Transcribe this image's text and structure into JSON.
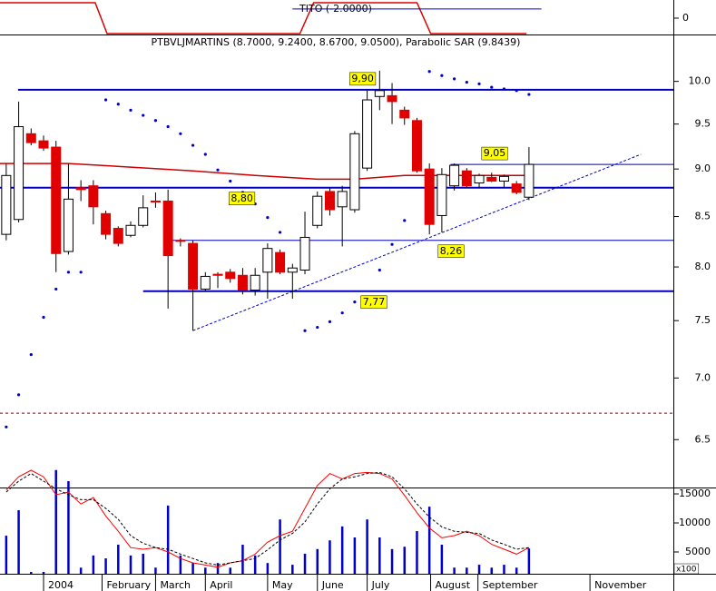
{
  "chart_data": {
    "type": "candlestick",
    "title": "PTBVLJMARTINS (8.7000, 9.2400, 8.6700, 9.0500), Parabolic SAR (9.8439)",
    "categories": [
      null,
      null,
      null,
      null,
      null,
      null,
      null,
      null,
      null,
      null,
      null,
      null,
      null,
      null,
      null,
      null,
      null,
      null,
      null,
      null,
      null,
      null,
      null,
      null,
      null,
      null,
      null,
      null,
      null,
      null,
      null,
      null,
      null,
      null,
      null,
      null,
      null,
      null,
      null,
      null,
      null,
      null,
      null
    ],
    "xlim": [
      -0.5,
      53.6
    ],
    "xticks": [
      {
        "value": 3,
        "label": "2004"
      },
      {
        "value": 7.7,
        "label": "February"
      },
      {
        "value": 12,
        "label": "March"
      },
      {
        "value": 16,
        "label": "April"
      },
      {
        "value": 21,
        "label": "May"
      },
      {
        "value": 25,
        "label": "June"
      },
      {
        "value": 29,
        "label": "July"
      },
      {
        "value": 34.1,
        "label": "August"
      },
      {
        "value": 37.9,
        "label": "September"
      },
      {
        "value": 46.9,
        "label": "November"
      }
    ],
    "ylim": [
      6.32,
      10.58
    ],
    "log_scale": true,
    "yticks": [
      {
        "value": 10,
        "label": "10.0"
      },
      9.5,
      {
        "value": 9,
        "label": "9.0"
      },
      8.5,
      {
        "value": 8,
        "label": "8.0"
      },
      7.5,
      {
        "value": 7,
        "label": "7.0"
      },
      6.5
    ],
    "up_color": "#ffffff",
    "down_color": "#e00000",
    "open": [
      8.32,
      8.47,
      9.39,
      9.31,
      9.24,
      8.15,
      8.8,
      8.82,
      8.53,
      8.38,
      8.31,
      8.41,
      8.66,
      8.66,
      8.26,
      8.23,
      7.79,
      7.93,
      7.95,
      7.92,
      7.78,
      7.95,
      8.14,
      7.95,
      7.97,
      8.41,
      8.76,
      8.6,
      8.57,
      9.01,
      9.82,
      9.83,
      9.66,
      9.54,
      9.0,
      8.51,
      8.82,
      8.98,
      8.85,
      8.91,
      8.87,
      8.84,
      8.7
    ],
    "high": [
      9.06,
      9.76,
      9.45,
      9.37,
      9.31,
      9.06,
      8.88,
      8.88,
      8.56,
      8.4,
      8.45,
      8.72,
      8.75,
      8.78,
      8.28,
      8.26,
      7.95,
      7.95,
      7.98,
      7.99,
      7.99,
      8.23,
      8.17,
      8.03,
      8.55,
      8.76,
      8.8,
      8.82,
      9.42,
      9.89,
      10.13,
      9.98,
      9.7,
      9.57,
      9.06,
      9.01,
      9.06,
      9.01,
      8.95,
      8.96,
      8.94,
      8.87,
      9.24
    ],
    "low": [
      8.26,
      8.44,
      9.26,
      9.2,
      7.95,
      8.12,
      8.66,
      8.42,
      8.27,
      8.2,
      8.29,
      8.39,
      8.59,
      7.61,
      8.2,
      7.41,
      7.77,
      7.8,
      7.85,
      7.74,
      7.73,
      7.7,
      7.93,
      7.7,
      7.93,
      8.38,
      8.51,
      8.2,
      8.54,
      8.98,
      9.66,
      9.5,
      9.49,
      8.96,
      8.32,
      8.34,
      8.77,
      8.8,
      8.8,
      8.86,
      8.8,
      8.73,
      8.67
    ],
    "close": [
      8.93,
      9.47,
      9.29,
      9.23,
      8.13,
      8.68,
      8.78,
      8.6,
      8.32,
      8.23,
      8.41,
      8.59,
      8.65,
      8.11,
      8.25,
      7.79,
      7.91,
      7.92,
      7.89,
      7.78,
      7.92,
      8.18,
      7.95,
      7.99,
      8.29,
      8.71,
      8.57,
      8.76,
      9.39,
      9.78,
      9.89,
      9.76,
      9.57,
      8.98,
      8.42,
      8.94,
      9.04,
      8.82,
      8.93,
      8.87,
      8.92,
      8.75,
      9.05
    ],
    "sar": {
      "color": "#0000cc",
      "values": [
        6.6,
        6.86,
        7.2,
        7.53,
        7.79,
        7.95,
        7.95,
        null,
        9.78,
        9.73,
        9.66,
        9.6,
        9.54,
        9.47,
        9.39,
        9.26,
        9.16,
        8.99,
        8.87,
        8.75,
        8.63,
        8.49,
        8.34,
        null,
        7.41,
        7.44,
        7.49,
        7.57,
        7.67,
        null,
        7.97,
        8.22,
        8.46,
        null,
        10.12,
        10.07,
        10.03,
        9.99,
        9.97,
        9.93,
        9.91,
        9.89,
        9.8439
      ]
    },
    "moving_average": {
      "color": "#cc0000",
      "x": [
        -0.5,
        5,
        10,
        15,
        20,
        25,
        28,
        32,
        36,
        42
      ],
      "values": [
        9.06,
        9.06,
        9.02,
        8.98,
        8.93,
        8.89,
        8.89,
        8.93,
        8.93,
        8.93
      ]
    },
    "levels": [
      {
        "value": 9.9,
        "label": "9,90",
        "x": [
          0.95,
          53.6
        ],
        "thick": true
      },
      {
        "value": 8.8,
        "label": "8,80",
        "x": [
          -0.5,
          53.6
        ],
        "thick": true
      },
      {
        "value": 8.26,
        "label": "8,26",
        "x": [
          13,
          53.6
        ],
        "thick": false
      },
      {
        "value": 7.77,
        "label": "7,77",
        "x": [
          11,
          53.6
        ],
        "thick": true
      },
      {
        "value": 9.05,
        "label": "9,05",
        "x": [
          35.7,
          53.6
        ],
        "thick": false
      }
    ],
    "level_color": "#0000bb",
    "label_color": "#ffff00",
    "trendline": {
      "color": "#0000cc",
      "x": [
        15,
        51
      ],
      "values": [
        7.41,
        9.16
      ]
    },
    "reference_line": {
      "color": "#880000",
      "value": 6.71
    },
    "tito": {
      "name": "TITO (-2.0000)",
      "color": "#dd0000",
      "ylim": [
        -2.12,
        2.35
      ],
      "yticks": [
        0
      ],
      "x": [
        -0.5,
        7.15,
        8.1,
        23.6,
        24.7,
        33,
        34.1,
        41.8
      ],
      "values": [
        2,
        2,
        -2,
        -2,
        2,
        2,
        -2,
        -2
      ],
      "signal": {
        "color": "#0000cc",
        "x": [
          23,
          43
        ],
        "values": [
          1.18,
          1.18
        ]
      }
    },
    "volume": {
      "color": "#0000cc",
      "unit": "x100",
      "ylim": [
        1250,
        21100
      ],
      "yticks": [
        15000,
        10000,
        5000
      ],
      "values": [
        7800,
        12200,
        1560,
        1560,
        19100,
        17200,
        2300,
        4400,
        3900,
        6250,
        4400,
        4700,
        2300,
        13000,
        4400,
        3100,
        2300,
        3100,
        2300,
        6250,
        4400,
        3100,
        10600,
        2800,
        4700,
        5500,
        7000,
        9400,
        7500,
        10600,
        7500,
        5500,
        5900,
        8600,
        12800,
        6250,
        2300,
        2300,
        2800,
        2300,
        2800,
        2300,
        5600
      ]
    },
    "stochastic": {
      "ylim": [
        0,
        100
      ],
      "series": [
        {
          "color": "#ff0000",
          "dashed": false,
          "values": [
            77,
            89,
            95,
            89,
            72.5,
            75,
            64,
            70,
            53,
            39,
            24,
            22.5,
            24,
            20,
            14,
            10,
            8,
            6,
            10,
            12,
            18,
            29,
            35,
            39,
            60,
            81,
            92,
            87,
            92,
            93,
            92,
            87,
            72,
            56,
            42,
            33,
            35,
            39,
            35,
            27,
            22.5,
            18,
            24
          ]
        },
        {
          "color": "#000000",
          "dashed": true,
          "values": [
            75,
            85,
            92,
            85,
            78,
            72.5,
            68,
            68,
            60,
            50,
            35,
            28,
            24,
            22.5,
            18,
            14,
            10,
            8,
            10,
            12,
            14,
            22,
            31,
            37,
            47.5,
            64,
            78,
            87,
            89,
            92,
            93,
            89,
            78,
            64,
            52,
            43,
            39,
            38,
            37,
            31,
            27,
            22.5,
            24
          ]
        }
      ]
    }
  }
}
